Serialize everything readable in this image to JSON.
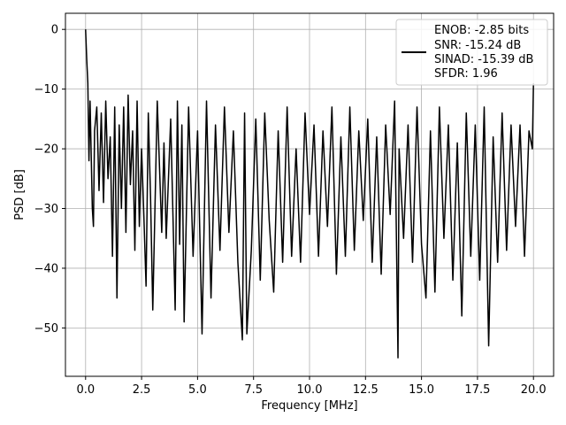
{
  "chart_data": {
    "type": "line",
    "title": "",
    "xlabel": "Frequency [MHz]",
    "ylabel": "PSD [dB]",
    "xlim": [
      -0.9,
      20.9
    ],
    "ylim": [
      -58.1,
      2.7
    ],
    "xticks": [
      0.0,
      2.5,
      5.0,
      7.5,
      10.0,
      12.5,
      15.0,
      17.5,
      20.0
    ],
    "xtick_labels": [
      "0.0",
      "2.5",
      "5.0",
      "7.5",
      "10.0",
      "12.5",
      "15.0",
      "17.5",
      "20.0"
    ],
    "yticks": [
      0,
      -10,
      -20,
      -30,
      -40,
      -50
    ],
    "ytick_labels": [
      "0",
      "−10",
      "−20",
      "−30",
      "−40",
      "−50"
    ],
    "grid": true,
    "legend_position": "top-right",
    "line_color": "#000000",
    "series": [
      {
        "legend_lines": [
          "ENOB: -2.85 bits",
          "SNR: -15.24 dB",
          "SINAD: -15.39 dB",
          "SFDR: 1.96"
        ],
        "x": [
          0.0,
          0.02,
          0.05,
          0.1,
          0.15,
          0.2,
          0.3,
          0.35,
          0.4,
          0.5,
          0.6,
          0.7,
          0.8,
          0.9,
          1.0,
          1.1,
          1.2,
          1.3,
          1.4,
          1.5,
          1.6,
          1.7,
          1.8,
          1.9,
          2.0,
          2.1,
          2.2,
          2.3,
          2.4,
          2.5,
          2.6,
          2.7,
          2.8,
          2.9,
          3.0,
          3.2,
          3.4,
          3.5,
          3.6,
          3.8,
          4.0,
          4.1,
          4.2,
          4.3,
          4.4,
          4.6,
          4.8,
          5.0,
          5.2,
          5.4,
          5.6,
          5.8,
          6.0,
          6.2,
          6.4,
          6.6,
          6.8,
          7.0,
          7.1,
          7.2,
          7.4,
          7.6,
          7.8,
          8.0,
          8.2,
          8.4,
          8.6,
          8.8,
          9.0,
          9.2,
          9.4,
          9.6,
          9.8,
          10.0,
          10.2,
          10.4,
          10.6,
          10.8,
          11.0,
          11.2,
          11.4,
          11.6,
          11.8,
          12.0,
          12.2,
          12.4,
          12.6,
          12.8,
          13.0,
          13.2,
          13.4,
          13.6,
          13.8,
          13.95,
          14.0,
          14.2,
          14.4,
          14.6,
          14.8,
          15.0,
          15.2,
          15.4,
          15.6,
          15.8,
          16.0,
          16.2,
          16.4,
          16.6,
          16.8,
          17.0,
          17.2,
          17.4,
          17.6,
          17.8,
          18.0,
          18.2,
          18.4,
          18.6,
          18.8,
          19.0,
          19.2,
          19.4,
          19.6,
          19.8,
          19.95,
          20.0
        ],
        "y": [
          0.0,
          -2.0,
          -5.0,
          -9.0,
          -22.0,
          -12.0,
          -30.0,
          -33.0,
          -17.0,
          -13.0,
          -27.0,
          -14.0,
          -29.0,
          -12.0,
          -25.0,
          -18.0,
          -38.0,
          -13.0,
          -45.0,
          -16.0,
          -30.0,
          -13.0,
          -34.0,
          -11.0,
          -26.0,
          -17.0,
          -37.0,
          -12.0,
          -33.0,
          -20.0,
          -31.0,
          -43.0,
          -14.0,
          -28.0,
          -47.0,
          -12.0,
          -34.0,
          -19.0,
          -35.0,
          -15.0,
          -47.0,
          -12.0,
          -36.0,
          -16.0,
          -49.0,
          -13.0,
          -38.0,
          -17.0,
          -51.0,
          -12.0,
          -45.0,
          -16.0,
          -37.0,
          -13.0,
          -34.0,
          -17.0,
          -39.0,
          -52.0,
          -14.0,
          -51.0,
          -37.0,
          -15.0,
          -42.0,
          -14.0,
          -32.0,
          -44.0,
          -17.0,
          -39.0,
          -13.0,
          -38.0,
          -20.0,
          -39.0,
          -14.0,
          -31.0,
          -16.0,
          -38.0,
          -17.0,
          -33.0,
          -13.0,
          -41.0,
          -18.0,
          -38.0,
          -13.0,
          -37.0,
          -17.0,
          -32.0,
          -15.0,
          -39.0,
          -18.0,
          -41.0,
          -16.0,
          -31.0,
          -12.0,
          -55.0,
          -20.0,
          -35.0,
          -16.0,
          -39.0,
          -13.0,
          -36.0,
          -45.0,
          -17.0,
          -44.0,
          -13.0,
          -35.0,
          -16.0,
          -42.0,
          -19.0,
          -48.0,
          -14.0,
          -38.0,
          -16.0,
          -42.0,
          -13.0,
          -53.0,
          -18.0,
          -39.0,
          -14.0,
          -37.0,
          -16.0,
          -33.0,
          -16.0,
          -38.0,
          -17.0,
          -20.0,
          -9.0
        ]
      }
    ]
  }
}
